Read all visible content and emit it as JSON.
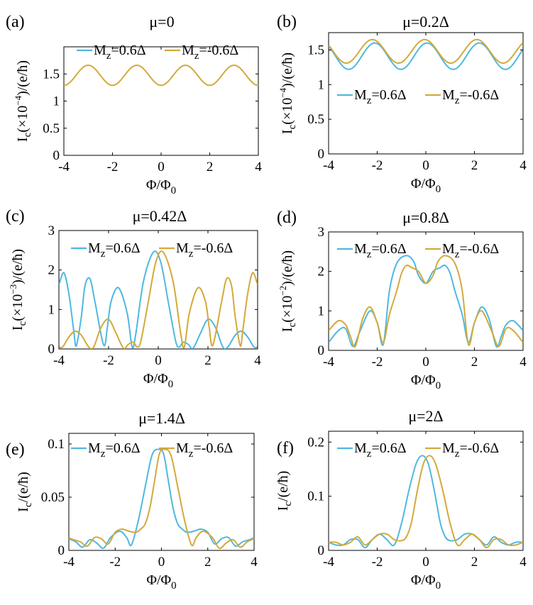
{
  "figure": {
    "colors": {
      "blue": "#4fb8e0",
      "gold": "#d4a93a"
    },
    "xlabel": "Φ/Φ",
    "xlabel_sub": "0",
    "legend": {
      "blue": {
        "base": "M",
        "sub": "z",
        "rest": "=0.6Δ"
      },
      "gold": {
        "base": "M",
        "sub": "z",
        "rest": "=-0.6Δ"
      }
    }
  },
  "chart_data": [
    {
      "type": "line",
      "panel_label": "(a)",
      "title": "μ=0",
      "ylabel_base": "I",
      "ylabel_sub": "c",
      "ylabel_scale": "(×10",
      "ylabel_exp": "−4",
      "ylabel_tail": ")/(e/ħ)",
      "xlim": [
        -4,
        4
      ],
      "ylim": [
        0,
        2
      ],
      "xticks": [
        -4,
        -2,
        0,
        2,
        4
      ],
      "xtick_labels": [
        "-4",
        "-2",
        "0",
        "2",
        "4"
      ],
      "yticks": [
        0,
        0.5,
        1,
        1.5
      ],
      "ytick_labels": [
        "0",
        "0.5",
        "1",
        "1.5"
      ],
      "legend_position": "top",
      "series": [
        {
          "name": "Mz=0.6Δ",
          "color_key": "blue",
          "kind": "cos",
          "mean": 1.475,
          "amp": 0.185,
          "period": 2,
          "phase": 1,
          "x_hidden": true
        },
        {
          "name": "Mz=-0.6Δ",
          "color_key": "gold",
          "kind": "cos",
          "mean": 1.475,
          "amp": 0.185,
          "period": 2,
          "phase": 1
        }
      ]
    },
    {
      "type": "line",
      "panel_label": "(b)",
      "title": "μ=0.2Δ",
      "ylabel_base": "I",
      "ylabel_sub": "c",
      "ylabel_scale": "(×10",
      "ylabel_exp": "−4",
      "ylabel_tail": ")/(e/ħ)",
      "xlim": [
        -4,
        4
      ],
      "ylim": [
        0,
        1.75
      ],
      "xticks": [
        -4,
        -2,
        0,
        2,
        4
      ],
      "xtick_labels": [
        "-4",
        "-2",
        "0",
        "2",
        "4"
      ],
      "yticks": [
        0,
        0.5,
        1,
        1.5
      ],
      "ytick_labels": [
        "0",
        "0.5",
        "1",
        "1.5"
      ],
      "legend_position": "middle",
      "series": [
        {
          "name": "Mz=0.6Δ",
          "color_key": "blue",
          "kind": "cos",
          "mean": 1.41,
          "amp": 0.19,
          "period": 2.15,
          "phase": 0.05
        },
        {
          "name": "Mz=-0.6Δ",
          "color_key": "gold",
          "kind": "cos",
          "mean": 1.48,
          "amp": 0.17,
          "period": 2.15,
          "phase": -0.05
        }
      ]
    },
    {
      "type": "line",
      "panel_label": "(c)",
      "title": "μ=0.42Δ",
      "ylabel_base": "I",
      "ylabel_sub": "c",
      "ylabel_scale": "(×10",
      "ylabel_exp": "−3",
      "ylabel_tail": ")/(e/ħ)",
      "xlim": [
        -4,
        4
      ],
      "ylim": [
        0,
        3
      ],
      "xticks": [
        -4,
        -2,
        0,
        2,
        4
      ],
      "xtick_labels": [
        "-4",
        "-2",
        "0",
        "2",
        "4"
      ],
      "yticks": [
        0,
        1,
        2,
        3
      ],
      "ytick_labels": [
        "0",
        "1",
        "2",
        "3"
      ],
      "legend_position": "top",
      "series": [
        {
          "name": "Mz=0.6Δ",
          "color_key": "blue",
          "kind": "points",
          "x": [
            -4,
            -3.8,
            -3.6,
            -3.4,
            -3.3,
            -3.1,
            -2.95,
            -2.75,
            -2.55,
            -2.2,
            -2.05,
            -1.9,
            -1.6,
            -1.25,
            -1.05,
            -0.9,
            -0.6,
            -0.2,
            0.1,
            0.4,
            0.7,
            0.85,
            1.0,
            1.2,
            1.4,
            1.7,
            2.0,
            2.3,
            2.6,
            2.8,
            3.1,
            3.35,
            3.6,
            3.85,
            4
          ],
          "y": [
            1.62,
            1.93,
            1.4,
            0.45,
            0.08,
            0.8,
            1.6,
            1.78,
            1.2,
            0.1,
            0.55,
            1.2,
            1.55,
            0.9,
            0.05,
            0.4,
            1.7,
            2.45,
            2.2,
            1.2,
            0.2,
            0.05,
            0.17,
            0.12,
            0.02,
            0.4,
            0.75,
            0.55,
            0.05,
            0.05,
            0.35,
            0.45,
            0.3,
            0.05,
            0.05
          ]
        },
        {
          "name": "Mz=-0.6Δ",
          "color_key": "gold",
          "kind": "points",
          "x": [
            -4,
            -3.85,
            -3.6,
            -3.35,
            -3.1,
            -2.8,
            -2.6,
            -2.3,
            -2.0,
            -1.7,
            -1.4,
            -1.2,
            -1.0,
            -0.85,
            -0.7,
            -0.4,
            -0.1,
            0.2,
            0.6,
            0.9,
            1.05,
            1.25,
            1.6,
            1.9,
            2.05,
            2.2,
            2.55,
            2.75,
            2.95,
            3.1,
            3.3,
            3.4,
            3.6,
            3.8,
            4
          ],
          "y": [
            0.05,
            0.05,
            0.3,
            0.45,
            0.35,
            0.05,
            0.05,
            0.55,
            0.75,
            0.4,
            0.02,
            0.12,
            0.17,
            0.05,
            0.2,
            1.2,
            2.2,
            2.45,
            1.7,
            0.4,
            0.05,
            0.9,
            1.55,
            1.2,
            0.55,
            0.1,
            1.2,
            1.78,
            1.6,
            0.8,
            0.08,
            0.45,
            1.4,
            1.93,
            1.62
          ]
        }
      ]
    },
    {
      "type": "line",
      "panel_label": "(d)",
      "title": "μ=0.8Δ",
      "ylabel_base": "I",
      "ylabel_sub": "c",
      "ylabel_scale": "(×10",
      "ylabel_exp": "−2",
      "ylabel_tail": ")/(e/ħ)",
      "xlim": [
        -4,
        4
      ],
      "ylim": [
        0,
        3
      ],
      "xticks": [
        -4,
        -2,
        0,
        2,
        4
      ],
      "xtick_labels": [
        "-4",
        "-2",
        "0",
        "2",
        "4"
      ],
      "yticks": [
        0,
        1,
        2,
        3
      ],
      "ytick_labels": [
        "0",
        "1",
        "2",
        "3"
      ],
      "legend_position": "top",
      "series": [
        {
          "name": "Mz=0.6Δ",
          "color_key": "blue",
          "kind": "points",
          "x": [
            -4,
            -3.6,
            -3.3,
            -3.0,
            -2.7,
            -2.3,
            -2.0,
            -1.75,
            -1.5,
            -1.2,
            -0.8,
            -0.5,
            -0.3,
            0,
            0.3,
            0.6,
            0.8,
            1.0,
            1.2,
            1.5,
            1.75,
            2.0,
            2.3,
            2.6,
            2.9,
            3.1,
            3.3,
            3.6,
            4
          ],
          "y": [
            0.2,
            0.5,
            0.55,
            0.1,
            0.5,
            1.0,
            0.7,
            0.15,
            1.5,
            2.2,
            2.4,
            2.25,
            1.9,
            1.7,
            2.0,
            2.1,
            2.15,
            1.95,
            1.5,
            0.9,
            0.2,
            0.7,
            1.1,
            0.8,
            0.1,
            0.35,
            0.65,
            0.75,
            0.5
          ]
        },
        {
          "name": "Mz=-0.6Δ",
          "color_key": "gold",
          "kind": "points",
          "x": [
            -4,
            -3.6,
            -3.3,
            -3.1,
            -2.9,
            -2.6,
            -2.3,
            -2.0,
            -1.75,
            -1.5,
            -1.2,
            -1.0,
            -0.8,
            -0.6,
            -0.3,
            0,
            0.3,
            0.5,
            0.8,
            1.2,
            1.5,
            1.75,
            2.0,
            2.3,
            2.7,
            3.0,
            3.3,
            3.6,
            4
          ],
          "y": [
            0.5,
            0.75,
            0.65,
            0.35,
            0.1,
            0.8,
            1.1,
            0.7,
            0.2,
            0.9,
            1.5,
            1.95,
            2.15,
            2.1,
            2.0,
            1.7,
            1.9,
            2.25,
            2.4,
            2.2,
            1.5,
            0.15,
            0.7,
            1.0,
            0.5,
            0.1,
            0.55,
            0.5,
            0.2
          ]
        }
      ]
    },
    {
      "type": "line",
      "panel_label": "(e)",
      "title": "μ=1.4Δ",
      "ylabel_base": "I",
      "ylabel_sub": "c",
      "ylabel_scale": "",
      "ylabel_exp": "",
      "ylabel_tail": "/(e/ħ)",
      "xlim": [
        -4,
        4
      ],
      "ylim": [
        0,
        0.11
      ],
      "xticks": [
        -4,
        -2,
        0,
        2,
        4
      ],
      "xtick_labels": [
        "-4",
        "-2",
        "0",
        "2",
        "4"
      ],
      "yticks": [
        0,
        0.05,
        0.1
      ],
      "ytick_labels": [
        "0",
        "0.05",
        "0.1"
      ],
      "legend_position": "top",
      "series": [
        {
          "name": "Mz=0.6Δ",
          "color_key": "blue",
          "kind": "points",
          "x": [
            -4,
            -3.7,
            -3.4,
            -3.1,
            -2.8,
            -2.5,
            -2.2,
            -1.8,
            -1.5,
            -1.3,
            -1.0,
            -0.7,
            -0.4,
            -0.1,
            0.1,
            0.3,
            0.5,
            0.7,
            0.9,
            1.1,
            1.4,
            1.7,
            2.0,
            2.3,
            2.6,
            2.9,
            3.2,
            3.5,
            3.8,
            4
          ],
          "y": [
            0.011,
            0.008,
            0.003,
            0.01,
            0.007,
            0.002,
            0.012,
            0.018,
            0.012,
            0.005,
            0.028,
            0.06,
            0.09,
            0.095,
            0.09,
            0.065,
            0.04,
            0.025,
            0.02,
            0.017,
            0.018,
            0.02,
            0.017,
            0.006,
            0.011,
            0.012,
            0.004,
            0.008,
            0.01,
            0.012
          ]
        },
        {
          "name": "Mz=-0.6Δ",
          "color_key": "gold",
          "kind": "points",
          "x": [
            -4,
            -3.8,
            -3.5,
            -3.2,
            -2.9,
            -2.6,
            -2.3,
            -2.0,
            -1.7,
            -1.4,
            -1.1,
            -0.9,
            -0.7,
            -0.5,
            -0.3,
            -0.1,
            0.1,
            0.4,
            0.7,
            1.0,
            1.3,
            1.5,
            1.8,
            2.2,
            2.5,
            2.8,
            3.1,
            3.4,
            3.7,
            4
          ],
          "y": [
            0.012,
            0.01,
            0.008,
            0.004,
            0.012,
            0.011,
            0.006,
            0.017,
            0.02,
            0.018,
            0.017,
            0.02,
            0.025,
            0.04,
            0.065,
            0.09,
            0.095,
            0.09,
            0.06,
            0.028,
            0.005,
            0.012,
            0.018,
            0.012,
            0.002,
            0.007,
            0.01,
            0.003,
            0.008,
            0.011
          ]
        }
      ]
    },
    {
      "type": "line",
      "panel_label": "(f)",
      "title": "μ=2Δ",
      "ylabel_base": "I",
      "ylabel_sub": "c",
      "ylabel_scale": "",
      "ylabel_exp": "",
      "ylabel_tail": "/(e/ħ)",
      "xlim": [
        -4,
        4
      ],
      "ylim": [
        0,
        0.22
      ],
      "xticks": [
        -4,
        -2,
        0,
        2,
        4
      ],
      "xtick_labels": [
        "-4",
        "-2",
        "0",
        "2",
        "4"
      ],
      "yticks": [
        0,
        0.1,
        0.2
      ],
      "ytick_labels": [
        "0",
        "0.1",
        "0.2"
      ],
      "legend_position": "top",
      "series": [
        {
          "name": "Mz=0.6Δ",
          "color_key": "blue",
          "kind": "points",
          "x": [
            -4,
            -3.7,
            -3.4,
            -3.1,
            -2.8,
            -2.5,
            -2.2,
            -1.9,
            -1.6,
            -1.3,
            -1.0,
            -0.7,
            -0.4,
            -0.15,
            0.1,
            0.35,
            0.6,
            0.8,
            1.0,
            1.3,
            1.6,
            1.9,
            2.2,
            2.5,
            2.8,
            3.1,
            3.4,
            3.7,
            4
          ],
          "y": [
            0.015,
            0.01,
            0.01,
            0.02,
            0.02,
            0.005,
            0.02,
            0.03,
            0.02,
            0.01,
            0.05,
            0.11,
            0.16,
            0.175,
            0.16,
            0.11,
            0.05,
            0.025,
            0.018,
            0.02,
            0.03,
            0.03,
            0.02,
            0.01,
            0.025,
            0.015,
            0.01,
            0.015,
            0.015
          ]
        },
        {
          "name": "Mz=-0.6Δ",
          "color_key": "gold",
          "kind": "points",
          "x": [
            -4,
            -3.7,
            -3.4,
            -3.1,
            -2.8,
            -2.5,
            -2.2,
            -1.9,
            -1.6,
            -1.3,
            -1.0,
            -0.8,
            -0.6,
            -0.35,
            -0.1,
            0.15,
            0.4,
            0.7,
            1.0,
            1.3,
            1.6,
            1.9,
            2.2,
            2.5,
            2.8,
            3.1,
            3.4,
            3.7,
            4
          ],
          "y": [
            0.015,
            0.015,
            0.01,
            0.015,
            0.025,
            0.01,
            0.02,
            0.03,
            0.03,
            0.02,
            0.018,
            0.025,
            0.05,
            0.11,
            0.16,
            0.175,
            0.16,
            0.11,
            0.05,
            0.01,
            0.02,
            0.03,
            0.02,
            0.005,
            0.02,
            0.02,
            0.01,
            0.01,
            0.015
          ]
        }
      ]
    }
  ]
}
